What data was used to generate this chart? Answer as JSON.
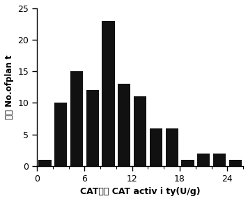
{
  "bar_centers": [
    1,
    3,
    5,
    7,
    9,
    11,
    13,
    15,
    17,
    19,
    21,
    23,
    25
  ],
  "values": [
    1,
    10,
    15,
    12,
    23,
    13,
    11,
    6,
    6,
    1,
    2,
    2,
    1
  ],
  "bar_width": 1.6,
  "bar_color": "#111111",
  "xlabel_cn": "活性",
  "xlabel_latin": "CAT activ i ty(U/g)",
  "ylabel_cn": "株数",
  "ylabel_latin": "No.ofplan t",
  "xlim": [
    0,
    26
  ],
  "ylim": [
    0,
    25
  ],
  "xticks": [
    0,
    6,
    12,
    18,
    24
  ],
  "xtick_labels": [
    "0",
    "6",
    "12",
    "18",
    "24"
  ],
  "yticks": [
    0,
    5,
    10,
    15,
    20,
    25
  ],
  "xlabel_fontsize": 9,
  "ylabel_fontsize": 8.5,
  "tick_fontsize": 9
}
